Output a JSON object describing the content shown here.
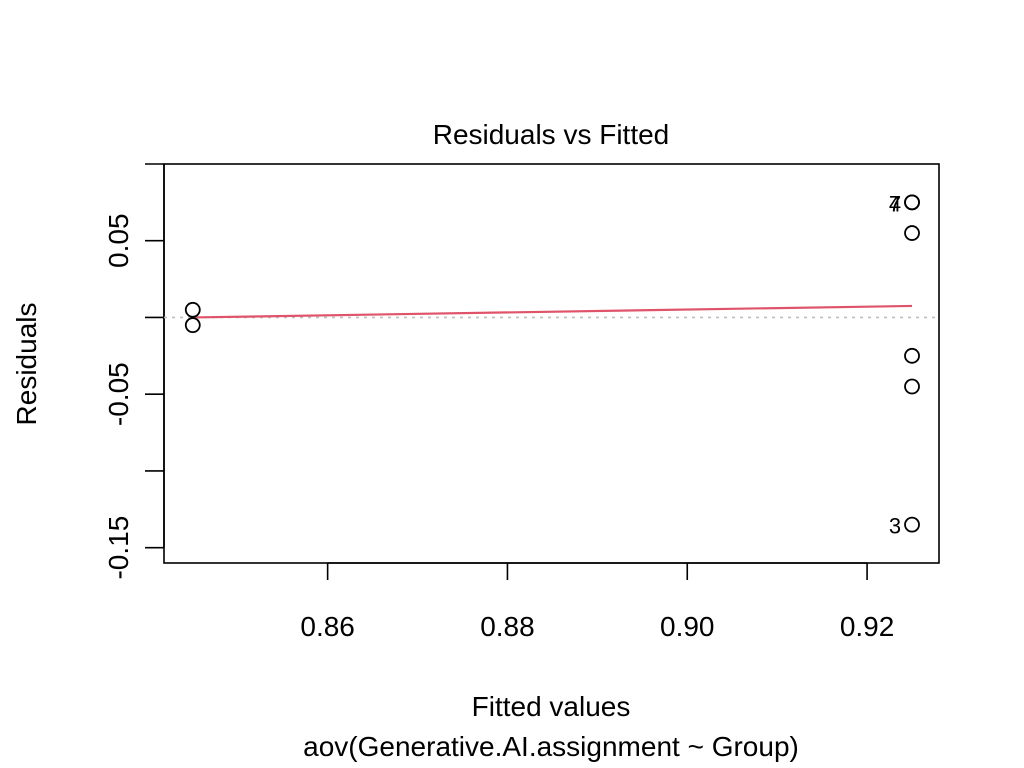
{
  "chart_data": {
    "type": "scatter",
    "title": "Residuals vs Fitted",
    "xlabel": "Fitted values",
    "subtitle": "aov(Generative.AI.assignment ~ Group)",
    "ylabel": "Residuals",
    "xlim": [
      0.8418,
      0.928
    ],
    "ylim": [
      -0.16,
      0.1
    ],
    "x_ticks": [
      0.86,
      0.88,
      0.9,
      0.92
    ],
    "x_tick_labels": [
      "0.86",
      "0.88",
      "0.90",
      "0.92"
    ],
    "y_ticks": [
      -0.15,
      -0.1,
      -0.05,
      0.0,
      0.05,
      0.1
    ],
    "y_tick_labels": [
      "-0.15",
      "",
      "-0.05",
      "",
      "0.05",
      ""
    ],
    "points": [
      {
        "x": 0.845,
        "y": 0.005,
        "label": ""
      },
      {
        "x": 0.845,
        "y": -0.005,
        "label": ""
      },
      {
        "x": 0.925,
        "y": 0.075,
        "label": "7"
      },
      {
        "x": 0.925,
        "y": 0.075,
        "label": "4"
      },
      {
        "x": 0.925,
        "y": 0.055,
        "label": ""
      },
      {
        "x": 0.925,
        "y": -0.025,
        "label": ""
      },
      {
        "x": 0.925,
        "y": -0.045,
        "label": ""
      },
      {
        "x": 0.925,
        "y": -0.135,
        "label": "3"
      }
    ],
    "smooth_line": [
      {
        "x": 0.845,
        "y": 0.0
      },
      {
        "x": 0.925,
        "y": 0.0075
      }
    ],
    "reference_line_y": 0,
    "colors": {
      "smooth": "#DF536B",
      "reference": "#BEBEBE",
      "points": "#000000"
    }
  }
}
